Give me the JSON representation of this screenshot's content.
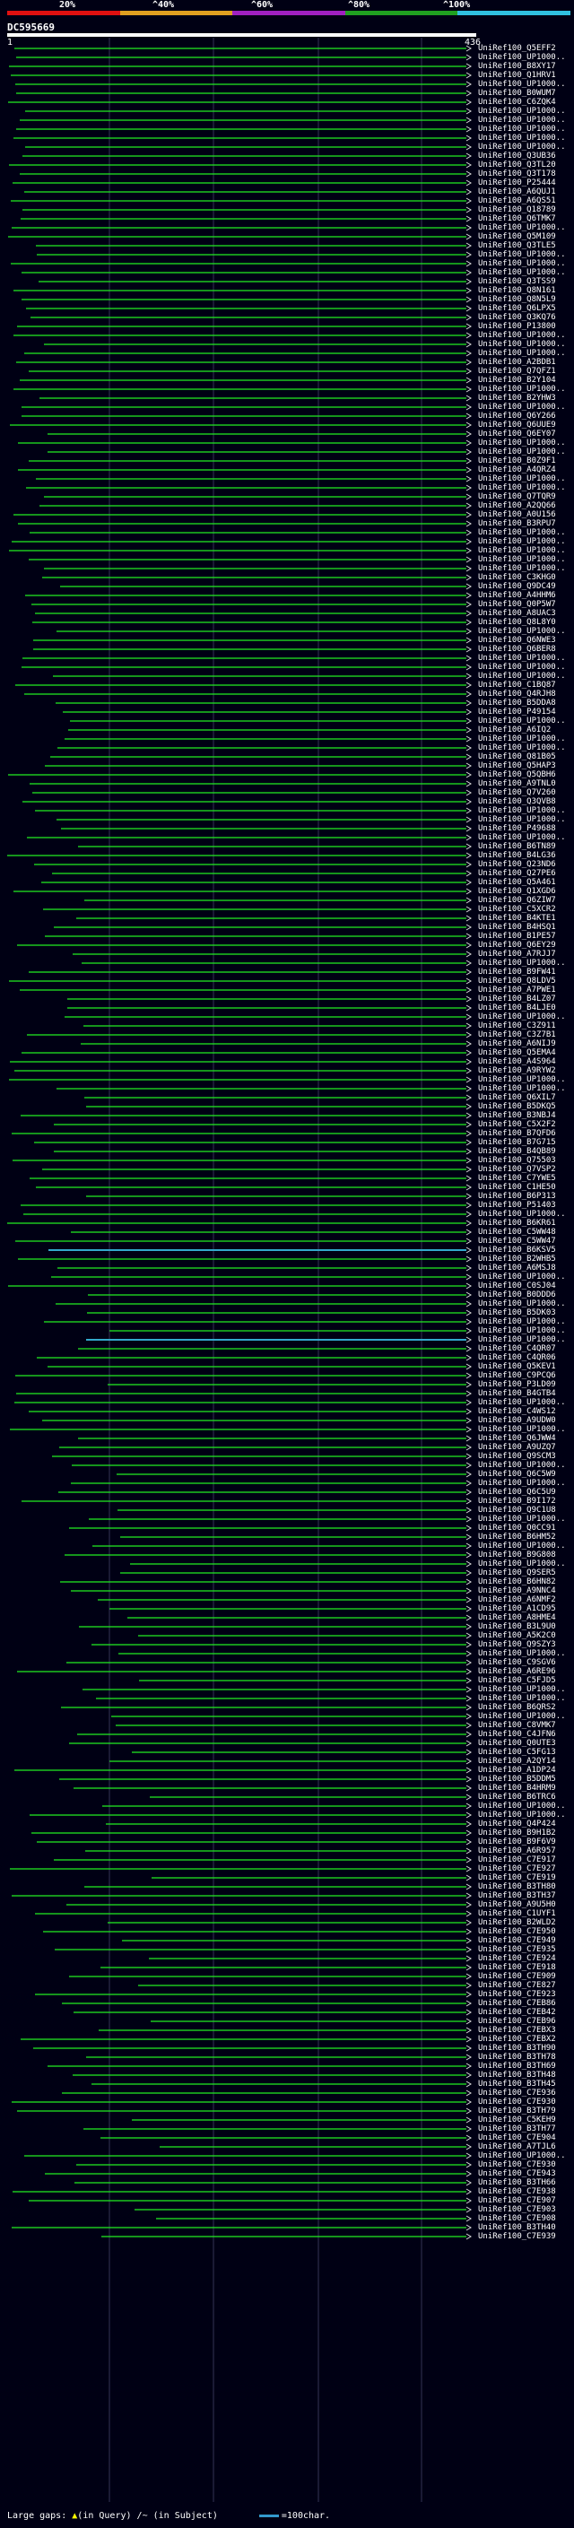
{
  "header": {
    "percent_labels": [
      "20%",
      "^40%",
      "^60%",
      "^80%",
      "^100%"
    ],
    "scale_colors": [
      "#e01010",
      "#e0a020",
      "#a020c0",
      "#20a020",
      "#30c0e0"
    ],
    "query_name": "DC595669",
    "query_start": "1",
    "query_end": "436"
  },
  "colors": {
    "background": "#000014",
    "hit_line": "#22ee22",
    "hit_highlight": "#33aacc",
    "gap_marker": "#ffff00"
  },
  "hits": [
    "UniRef100_Q5EFF2",
    "UniRef100_UP1000..",
    "UniRef100_B8XY17",
    "UniRef100_Q1HRV1",
    "UniRef100_UP1000..",
    "UniRef100_B0WUM7",
    "UniRef100_C6ZQK4",
    "UniRef100_UP1000..",
    "UniRef100_UP1000..",
    "UniRef100_UP1000..",
    "UniRef100_UP1000..",
    "UniRef100_UP1000..",
    "UniRef100_Q3UB36",
    "UniRef100_Q3TL20",
    "UniRef100_Q3T178",
    "UniRef100_P25444",
    "UniRef100_A6QUJ1",
    "UniRef100_A6QS51",
    "UniRef100_Q18789",
    "UniRef100_Q6TMK7",
    "UniRef100_UP1000..",
    "UniRef100_Q5M109",
    "UniRef100_Q3TLE5",
    "UniRef100_UP1000..",
    "UniRef100_UP1000..",
    "UniRef100_UP1000..",
    "UniRef100_Q3TSS9",
    "UniRef100_Q8N161",
    "UniRef100_Q8N5L9",
    "UniRef100_Q6LPX5",
    "UniRef100_Q3KQ76",
    "UniRef100_P13800",
    "UniRef100_UP1000..",
    "UniRef100_UP1000..",
    "UniRef100_UP1000..",
    "UniRef100_A2BDB1",
    "UniRef100_Q7QFZ1",
    "UniRef100_B2Y104",
    "UniRef100_UP1000..",
    "UniRef100_B2YHW3",
    "UniRef100_UP1000..",
    "UniRef100_Q6Y266",
    "UniRef100_Q6UUE9",
    "UniRef100_Q6EY07",
    "UniRef100_UP1000..",
    "UniRef100_UP1000..",
    "UniRef100_B0Z9F1",
    "UniRef100_A4QRZ4",
    "UniRef100_UP1000..",
    "UniRef100_UP1000..",
    "UniRef100_Q7TQR9",
    "UniRef100_A2QQ66",
    "UniRef100_A0U156",
    "UniRef100_B3RPU7",
    "UniRef100_UP1000..",
    "UniRef100_UP1000..",
    "UniRef100_UP1000..",
    "UniRef100_UP1000..",
    "UniRef100_UP1000..",
    "UniRef100_C3KHG0",
    "UniRef100_Q9DC49",
    "UniRef100_A4HHM6",
    "UniRef100_Q0P5W7",
    "UniRef100_A8UAC3",
    "UniRef100_Q8L8Y0",
    "UniRef100_UP1000..",
    "UniRef100_Q6NWE3",
    "UniRef100_Q6BER8",
    "UniRef100_UP1000..",
    "UniRef100_UP1000..",
    "UniRef100_UP1000..",
    "UniRef100_C1BQ87",
    "UniRef100_Q4RJH8",
    "UniRef100_B5DDA8",
    "UniRef100_P49154",
    "UniRef100_UP1000..",
    "UniRef100_A6IQ2",
    "UniRef100_UP1000..",
    "UniRef100_UP1000..",
    "UniRef100_Q81B05",
    "UniRef100_Q5HAP3",
    "UniRef100_Q5QBH6",
    "UniRef100_A9TNL0",
    "UniRef100_Q7V260",
    "UniRef100_Q3QVB8",
    "UniRef100_UP1000..",
    "UniRef100_UP1000..",
    "UniRef100_P49688",
    "UniRef100_UP1000..",
    "UniRef100_B6TN89",
    "UniRef100_B4LG36",
    "UniRef100_Q23ND6",
    "UniRef100_Q27PE6",
    "UniRef100_Q5A461",
    "UniRef100_Q1XGD6",
    "UniRef100_Q6ZIW7",
    "UniRef100_C5XCR2",
    "UniRef100_B4KTE1",
    "UniRef100_B4HSQ1",
    "UniRef100_B1PE57",
    "UniRef100_Q6EY29",
    "UniRef100_A7RJJ7",
    "UniRef100_UP1000..",
    "UniRef100_B9FW41",
    "UniRef100_Q8LDV5",
    "UniRef100_A7PWE1",
    "UniRef100_B4LZ07",
    "UniRef100_B4LJE0",
    "UniRef100_UP1000..",
    "UniRef100_C3Z911",
    "UniRef100_C3Z7B1",
    "UniRef100_A6NIJ9",
    "UniRef100_Q5EMA4",
    "UniRef100_A4S964",
    "UniRef100_A9RYW2",
    "UniRef100_UP1000..",
    "UniRef100_UP1000..",
    "UniRef100_Q6XIL7",
    "UniRef100_B5DKQ5",
    "UniRef100_B3NBJ4",
    "UniRef100_C5X2F2",
    "UniRef100_B7QFD6",
    "UniRef100_B7G715",
    "UniRef100_B4QB89",
    "UniRef100_Q75503",
    "UniRef100_Q7VSP2",
    "UniRef100_C7YWE5",
    "UniRef100_C1HE50",
    "UniRef100_B6P313",
    "UniRef100_P51403",
    "UniRef100_UP1000..",
    "UniRef100_B6KR61",
    "UniRef100_C5WW48",
    "UniRef100_C5WW47",
    "UniRef100_B6KSV5",
    "UniRef100_B2WHB5",
    "UniRef100_A6MSJ8",
    "UniRef100_UP1000..",
    "UniRef100_C0SJ04",
    "UniRef100_B0DDD6",
    "UniRef100_UP1000..",
    "UniRef100_B5DK03",
    "UniRef100_UP1000..",
    "UniRef100_UP1000..",
    "UniRef100_UP1000..",
    "UniRef100_C4QR07",
    "UniRef100_C4QR06",
    "UniRef100_Q5KEV1",
    "UniRef100_C9PCQ6",
    "UniRef100_P3LD09",
    "UniRef100_B4GTB4",
    "UniRef100_UP1000..",
    "UniRef100_C4WS12",
    "UniRef100_A9UDW0",
    "UniRef100_UP1000..",
    "UniRef100_Q6JWW4",
    "UniRef100_A9UZQ7",
    "UniRef100_Q9SCM3",
    "UniRef100_UP1000..",
    "UniRef100_Q6C5W9",
    "UniRef100_UP1000..",
    "UniRef100_Q6C5U9",
    "UniRef100_B9I172",
    "UniRef100_Q9C1U8",
    "UniRef100_UP1000..",
    "UniRef100_Q0CC91",
    "UniRef100_B6HM52",
    "UniRef100_UP1000..",
    "UniRef100_B9G808",
    "UniRef100_UP1000..",
    "UniRef100_Q9SER5",
    "UniRef100_B6HN82",
    "UniRef100_A9NNC4",
    "UniRef100_A6NMF2",
    "UniRef100_A1CD95",
    "UniRef100_A8HME4",
    "UniRef100_B3L9U0",
    "UniRef100_A5K2C0",
    "UniRef100_Q9SZY3",
    "UniRef100_UP1000..",
    "UniRef100_C9SGV6",
    "UniRef100_A6RE96",
    "UniRef100_C5FJD5",
    "UniRef100_UP1000..",
    "UniRef100_UP1000..",
    "UniRef100_B6QRS2",
    "UniRef100_UP1000..",
    "UniRef100_C8VMK7",
    "UniRef100_C4JFN6",
    "UniRef100_Q0UTE3",
    "UniRef100_C5FG13",
    "UniRef100_A2QY14",
    "UniRef100_A1DP24",
    "UniRef100_B5DDM5",
    "UniRef100_B4HRM9",
    "UniRef100_B6TRC6",
    "UniRef100_UP1000..",
    "UniRef100_UP1000..",
    "UniRef100_Q4P424",
    "UniRef100_B9H1B2",
    "UniRef100_B9F6V9",
    "UniRef100_A6R957",
    "UniRef100_C7E917",
    "UniRef100_C7E927",
    "UniRef100_C7E919",
    "UniRef100_B3TH80",
    "UniRef100_B3TH37",
    "UniRef100_A9U5H0",
    "UniRef100_C1UYF1",
    "UniRef100_B2WLD2",
    "UniRef100_C7E950",
    "UniRef100_C7E949",
    "UniRef100_C7E935",
    "UniRef100_C7E924",
    "UniRef100_C7E918",
    "UniRef100_C7E909",
    "UniRef100_C7E827",
    "UniRef100_C7E923",
    "UniRef100_C7EB86",
    "UniRef100_C7EB42",
    "UniRef100_C7EB96",
    "UniRef100_C7EBX3",
    "UniRef100_C7EBX2",
    "UniRef100_B3TH90",
    "UniRef100_B3TH78",
    "UniRef100_B3TH69",
    "UniRef100_B3TH48",
    "UniRef100_B3TH45",
    "UniRef100_C7E936",
    "UniRef100_C7E930",
    "UniRef100_B3TH79",
    "UniRef100_C5KEH9",
    "UniRef100_B3TH77",
    "UniRef100_C7E904",
    "UniRef100_A7TJL6",
    "UniRef100_UP1000..",
    "UniRef100_C7E930",
    "UniRef100_C7E943",
    "UniRef100_B3TH66",
    "UniRef100_C7E938",
    "UniRef100_C7E907",
    "UniRef100_C7E903",
    "UniRef100_C7E908",
    "UniRef100_B3TH40",
    "UniRef100_C7E939"
  ],
  "legend": {
    "large_gaps_label": "Large gaps:",
    "in_query_label": "(in Query)",
    "in_subject_label": "/~ (in Subject)",
    "scale_label": "=100char."
  }
}
